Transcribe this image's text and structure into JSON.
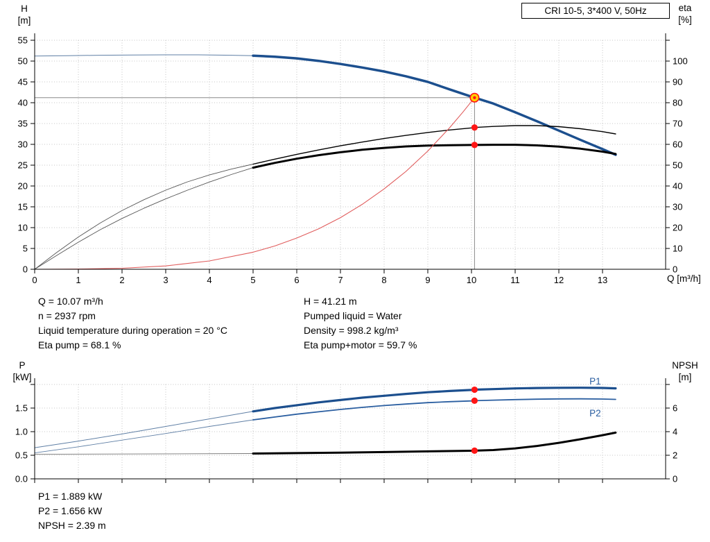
{
  "title_box": "CRI 10-5, 3*400 V, 50Hz",
  "labels": {
    "h": [
      "H",
      "[m]"
    ],
    "eta": [
      "eta",
      "[%]"
    ],
    "q": "Q [m³/h]",
    "p": [
      "P",
      "[kW]"
    ],
    "npsh": [
      "NPSH",
      "[m]"
    ]
  },
  "annotations": {
    "top_left": [
      "Q = 10.07 m³/h",
      "n = 2937 rpm",
      "Liquid temperature during operation = 20 °C",
      "Eta pump = 68.1 %"
    ],
    "top_right": [
      "H = 41.21 m",
      "Pumped liquid = Water",
      "Density = 998.2 kg/m³",
      "Eta pump+motor = 59.7 %"
    ],
    "bottom": [
      "P1 = 1.889 kW",
      "P2 = 1.656 kW",
      "NPSH = 2.39 m"
    ]
  },
  "colors": {
    "blue": "#1c4f8e",
    "blue_thin": "#5f7fa5",
    "black": "#000000",
    "gray_thin": "#555555",
    "red_curve": "#e05c5c",
    "dot_red": "#ff1515",
    "marker_fill": "#ffd300",
    "marker_ring": "#ff1515",
    "grid": "#c4c4c4",
    "helper": "#8a8a8a",
    "label_blue": "#2a5ea0"
  },
  "chart_data": [
    {
      "type": "line",
      "name": "qh-efficiency-chart",
      "title": "CRI 10-5, 3*400 V, 50Hz",
      "x": {
        "label": "Q [m³/h]",
        "min": 0,
        "max": 14.4,
        "grid": true,
        "ticks": [
          0,
          1,
          2,
          3,
          4,
          5,
          6,
          7,
          8,
          9,
          10,
          11,
          12,
          13
        ],
        "tick_labels": [
          "0",
          "1",
          "2",
          "3",
          "4",
          "5",
          "6",
          "7",
          "8",
          "9",
          "10",
          "11",
          "12",
          "13"
        ]
      },
      "y_left": {
        "label": "H [m]",
        "axis": "H",
        "min": 0,
        "max": 56.3,
        "grid": true,
        "ticks": [
          0,
          5,
          10,
          15,
          20,
          25,
          30,
          35,
          40,
          45,
          50,
          55
        ],
        "tick_labels": [
          "0",
          "5",
          "10",
          "15",
          "20",
          "25",
          "30",
          "35",
          "40",
          "45",
          "50",
          "55"
        ]
      },
      "y_right": {
        "label": "eta [%]",
        "axis": "eta",
        "min": 0,
        "max": 112.7,
        "ticks": [
          0,
          10,
          20,
          30,
          40,
          50,
          60,
          70,
          80,
          90,
          100,
          110
        ],
        "tick_labels": [
          "0",
          "10",
          "20",
          "30",
          "40",
          "50",
          "60",
          "70",
          "80",
          "90",
          "100",
          ""
        ]
      },
      "operating_point": {
        "q": 10.07,
        "axis": "H",
        "value": 41.21
      },
      "series": [
        {
          "name": "pump-curve-extension",
          "axis": "H",
          "color": "#5f7fa5",
          "width": 1,
          "points": [
            [
              0,
              51.2
            ],
            [
              0.75,
              51.3
            ],
            [
              1.5,
              51.4
            ],
            [
              2.25,
              51.45
            ],
            [
              3,
              51.5
            ],
            [
              3.75,
              51.5
            ],
            [
              4.5,
              51.4
            ],
            [
              5,
              51.3
            ]
          ]
        },
        {
          "name": "pump-curve-qh",
          "axis": "H",
          "color": "#1c4f8e",
          "width": 3.5,
          "points": [
            [
              5,
              51.3
            ],
            [
              5.5,
              51.05
            ],
            [
              6,
              50.65
            ],
            [
              6.5,
              50.05
            ],
            [
              7,
              49.3
            ],
            [
              7.5,
              48.45
            ],
            [
              8,
              47.5
            ],
            [
              8.5,
              46.35
            ],
            [
              9,
              45.0
            ],
            [
              9.5,
              43.2
            ],
            [
              10,
              41.45
            ],
            [
              10.07,
              41.21
            ],
            [
              10.5,
              39.8
            ],
            [
              11,
              37.7
            ],
            [
              11.5,
              35.55
            ],
            [
              12,
              33.3
            ],
            [
              12.5,
              31.05
            ],
            [
              13,
              28.85
            ],
            [
              13.3,
              27.5
            ]
          ]
        },
        {
          "name": "eta-pump-extension",
          "axis": "eta",
          "color": "#555555",
          "width": 0.9,
          "points": [
            [
              0,
              0
            ],
            [
              0.5,
              8
            ],
            [
              1,
              15.5
            ],
            [
              1.5,
              22.2
            ],
            [
              2,
              28.2
            ],
            [
              2.5,
              33.4
            ],
            [
              3,
              38
            ],
            [
              3.5,
              42
            ],
            [
              4,
              45.3
            ],
            [
              4.5,
              48.1
            ],
            [
              5,
              50.5
            ]
          ]
        },
        {
          "name": "eta-pump",
          "axis": "eta",
          "color": "#000000",
          "width": 1.4,
          "points": [
            [
              5,
              50.5
            ],
            [
              5.5,
              52.9
            ],
            [
              6,
              55.2
            ],
            [
              6.5,
              57.3
            ],
            [
              7,
              59.3
            ],
            [
              7.5,
              61.1
            ],
            [
              8,
              62.8
            ],
            [
              8.5,
              64.3
            ],
            [
              9,
              65.7
            ],
            [
              9.5,
              66.9
            ],
            [
              10,
              67.9
            ],
            [
              10.07,
              68.1
            ],
            [
              10.5,
              68.6
            ],
            [
              11,
              69.0
            ],
            [
              11.5,
              69.0
            ],
            [
              12,
              68.5
            ],
            [
              12.5,
              67.5
            ],
            [
              13,
              66.1
            ],
            [
              13.3,
              65.0
            ]
          ]
        },
        {
          "name": "eta-pump-motor-extension",
          "axis": "eta",
          "color": "#555555",
          "width": 0.9,
          "points": [
            [
              0,
              0
            ],
            [
              0.5,
              6.6
            ],
            [
              1,
              13
            ],
            [
              1.5,
              19
            ],
            [
              2,
              24.4
            ],
            [
              2.5,
              29.3
            ],
            [
              3,
              33.8
            ],
            [
              3.5,
              38
            ],
            [
              4,
              41.9
            ],
            [
              4.5,
              45.5
            ],
            [
              5,
              48.8
            ]
          ]
        },
        {
          "name": "eta-pump-motor",
          "axis": "eta",
          "color": "#000000",
          "width": 3,
          "points": [
            [
              5,
              48.8
            ],
            [
              5.5,
              51.1
            ],
            [
              6,
              53.1
            ],
            [
              6.5,
              54.8
            ],
            [
              7,
              56.2
            ],
            [
              7.5,
              57.4
            ],
            [
              8,
              58.3
            ],
            [
              8.5,
              59.0
            ],
            [
              9,
              59.4
            ],
            [
              9.5,
              59.6
            ],
            [
              10,
              59.7
            ],
            [
              10.07,
              59.7
            ],
            [
              10.5,
              59.8
            ],
            [
              11,
              59.8
            ],
            [
              11.5,
              59.5
            ],
            [
              12,
              58.9
            ],
            [
              12.5,
              57.9
            ],
            [
              13,
              56.5
            ],
            [
              13.3,
              55.4
            ]
          ]
        },
        {
          "name": "system-curve",
          "axis": "H",
          "color": "#e05c5c",
          "width": 1.1,
          "points": [
            [
              0,
              0
            ],
            [
              1,
              0.05
            ],
            [
              2,
              0.25
            ],
            [
              3,
              0.8
            ],
            [
              4,
              2.0
            ],
            [
              5,
              4.1
            ],
            [
              5.5,
              5.6
            ],
            [
              6,
              7.5
            ],
            [
              6.5,
              9.7
            ],
            [
              7,
              12.4
            ],
            [
              7.5,
              15.6
            ],
            [
              8,
              19.3
            ],
            [
              8.5,
              23.5
            ],
            [
              9,
              28.4
            ],
            [
              9.5,
              34.0
            ],
            [
              9.8,
              37.7
            ],
            [
              10.07,
              41.21
            ]
          ]
        }
      ],
      "dots": [
        {
          "q": 10.07,
          "axis": "eta",
          "value": 68.1
        },
        {
          "q": 10.07,
          "axis": "eta",
          "value": 59.7
        }
      ]
    },
    {
      "type": "line",
      "name": "power-npsh-chart",
      "x": {
        "label": "",
        "min": 0,
        "max": 14.4,
        "grid": true,
        "ticks": [
          0,
          1,
          2,
          3,
          4,
          5,
          6,
          7,
          8,
          9,
          10,
          11,
          12,
          13
        ],
        "tick_labels": [
          "",
          "",
          "",
          "",
          "",
          "",
          "",
          "",
          "",
          "",
          "",
          "",
          "",
          ""
        ]
      },
      "y_left": {
        "label": "P [kW]",
        "axis": "P",
        "min": 0,
        "max": 2.13,
        "grid": true,
        "ticks": [
          0,
          0.5,
          1,
          1.5,
          2
        ],
        "tick_labels": [
          "0.0",
          "0.5",
          "1.0",
          "1.5",
          ""
        ]
      },
      "y_right": {
        "label": "NPSH [m]",
        "axis": "N",
        "min": 0,
        "max": 8.5,
        "ticks": [
          0,
          2,
          4,
          6,
          8
        ],
        "tick_labels": [
          "0",
          "2",
          "4",
          "6",
          ""
        ]
      },
      "series": [
        {
          "name": "p1-extension",
          "axis": "P",
          "color": "#5f7fa5",
          "width": 1,
          "points": [
            [
              0,
              0.66
            ],
            [
              1,
              0.8
            ],
            [
              2,
              0.95
            ],
            [
              3,
              1.11
            ],
            [
              4,
              1.27
            ],
            [
              5,
              1.43
            ]
          ]
        },
        {
          "name": "p1-curve",
          "label": "P1",
          "label_pos": [
            12.7,
            2.0
          ],
          "axis": "P",
          "color": "#1c4f8e",
          "width": 3.2,
          "points": [
            [
              5,
              1.43
            ],
            [
              5.5,
              1.5
            ],
            [
              6,
              1.56
            ],
            [
              6.5,
              1.62
            ],
            [
              7,
              1.67
            ],
            [
              7.5,
              1.72
            ],
            [
              8,
              1.76
            ],
            [
              8.5,
              1.8
            ],
            [
              9,
              1.835
            ],
            [
              9.5,
              1.862
            ],
            [
              10,
              1.884
            ],
            [
              10.07,
              1.889
            ],
            [
              10.5,
              1.902
            ],
            [
              11,
              1.916
            ],
            [
              11.5,
              1.925
            ],
            [
              12,
              1.93
            ],
            [
              12.5,
              1.931
            ],
            [
              13,
              1.926
            ],
            [
              13.3,
              1.918
            ]
          ]
        },
        {
          "name": "p2-extension",
          "axis": "P",
          "color": "#5f7fa5",
          "width": 0.9,
          "points": [
            [
              0,
              0.55
            ],
            [
              1,
              0.68
            ],
            [
              2,
              0.82
            ],
            [
              3,
              0.96
            ],
            [
              4,
              1.11
            ],
            [
              5,
              1.25
            ]
          ]
        },
        {
          "name": "p2-curve",
          "label": "P2",
          "label_pos": [
            12.7,
            1.32
          ],
          "axis": "P",
          "color": "#2a5ea0",
          "width": 1.8,
          "points": [
            [
              5,
              1.25
            ],
            [
              5.5,
              1.31
            ],
            [
              6,
              1.37
            ],
            [
              6.5,
              1.42
            ],
            [
              7,
              1.47
            ],
            [
              7.5,
              1.515
            ],
            [
              8,
              1.553
            ],
            [
              8.5,
              1.586
            ],
            [
              9,
              1.614
            ],
            [
              9.5,
              1.636
            ],
            [
              10,
              1.651
            ],
            [
              10.07,
              1.656
            ],
            [
              10.5,
              1.668
            ],
            [
              11,
              1.679
            ],
            [
              11.5,
              1.688
            ],
            [
              12,
              1.694
            ],
            [
              12.5,
              1.696
            ],
            [
              13,
              1.691
            ],
            [
              13.3,
              1.684
            ]
          ]
        },
        {
          "name": "npsh-extension",
          "axis": "N",
          "color": "#777777",
          "width": 0.9,
          "points": [
            [
              0,
              2.08
            ],
            [
              2.5,
              2.11
            ],
            [
              5,
              2.15
            ]
          ]
        },
        {
          "name": "npsh-curve",
          "axis": "N",
          "color": "#000000",
          "width": 3,
          "points": [
            [
              5,
              2.15
            ],
            [
              6,
              2.18
            ],
            [
              7,
              2.22
            ],
            [
              8,
              2.27
            ],
            [
              9,
              2.33
            ],
            [
              10,
              2.385
            ],
            [
              10.07,
              2.39
            ],
            [
              10.5,
              2.44
            ],
            [
              11,
              2.58
            ],
            [
              11.5,
              2.79
            ],
            [
              12,
              3.05
            ],
            [
              12.5,
              3.36
            ],
            [
              13,
              3.7
            ],
            [
              13.3,
              3.92
            ]
          ]
        }
      ],
      "dots": [
        {
          "q": 10.07,
          "axis": "P",
          "value": 1.889
        },
        {
          "q": 10.07,
          "axis": "P",
          "value": 1.656
        },
        {
          "q": 10.07,
          "axis": "N",
          "value": 2.39
        }
      ]
    }
  ]
}
